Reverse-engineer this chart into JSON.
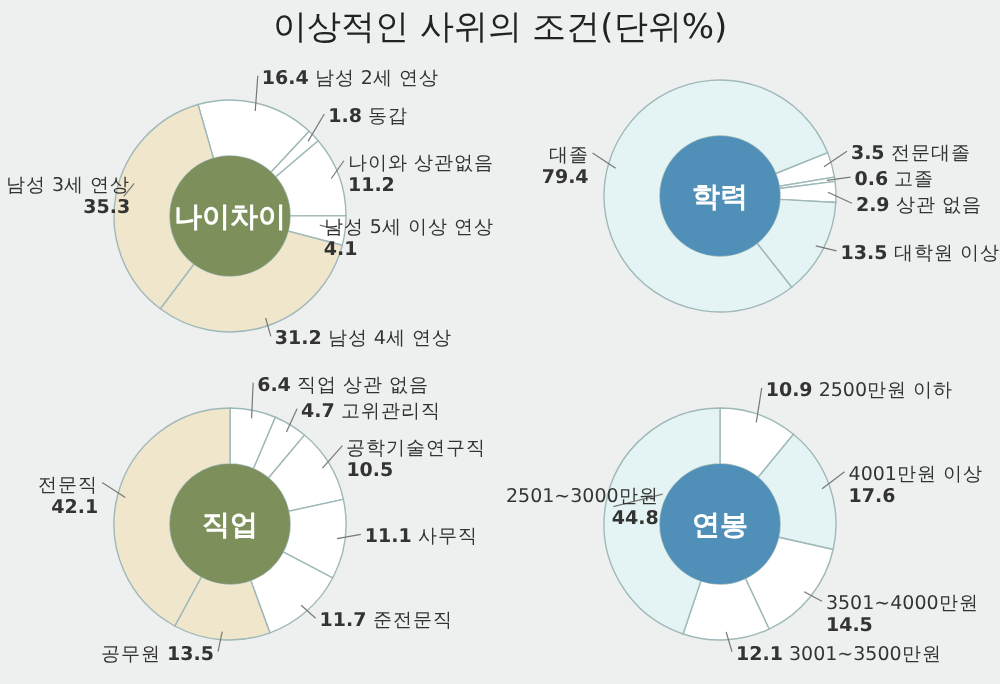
{
  "chart_data": [
    {
      "type": "other",
      "title": "이상적인 사위의 조건(단위%)"
    },
    {
      "type": "donut",
      "title": "나이차이",
      "categories": [
        "남성 2세 연상",
        "동갑",
        "나이와 상관없음",
        "남성 5세 이상 연상",
        "남성 4세 연상",
        "남성 3세 연상"
      ],
      "values": [
        16.4,
        1.8,
        11.2,
        4.1,
        31.2,
        35.3
      ],
      "colors": [
        "#ffffff",
        "#ffffff",
        "#ffffff",
        "#ffffff",
        "#efe6cc",
        "#efe6cc"
      ],
      "data_labels": true
    },
    {
      "type": "donut",
      "title": "학력",
      "categories": [
        "전문대졸",
        "고졸",
        "상관 없음",
        "대학원 이상",
        "대졸"
      ],
      "values": [
        3.5,
        0.6,
        2.9,
        13.5,
        79.4
      ],
      "colors": [
        "#ffffff",
        "#ffffff",
        "#ffffff",
        "#e4f3f3",
        "#e4f3f3"
      ],
      "data_labels": true
    },
    {
      "type": "donut",
      "title": "직업",
      "categories": [
        "직업 상관 없음",
        "고위관리직",
        "공학기술연구직",
        "사무직",
        "준전문직",
        "공무원",
        "전문직"
      ],
      "values": [
        6.4,
        4.7,
        10.5,
        11.1,
        11.7,
        13.5,
        42.1
      ],
      "colors": [
        "#ffffff",
        "#ffffff",
        "#ffffff",
        "#ffffff",
        "#ffffff",
        "#efe6cc",
        "#efe6cc"
      ],
      "data_labels": true
    },
    {
      "type": "donut",
      "title": "연봉",
      "categories": [
        "2500만원 이하",
        "4001만원 이상",
        "3501~4000만원",
        "3001~3500만원",
        "2501~3000만원"
      ],
      "values": [
        10.9,
        17.6,
        14.5,
        12.1,
        44.8
      ],
      "colors": [
        "#ffffff",
        "#e4f3f3",
        "#ffffff",
        "#ffffff",
        "#e4f3f3"
      ],
      "data_labels": true
    }
  ]
}
